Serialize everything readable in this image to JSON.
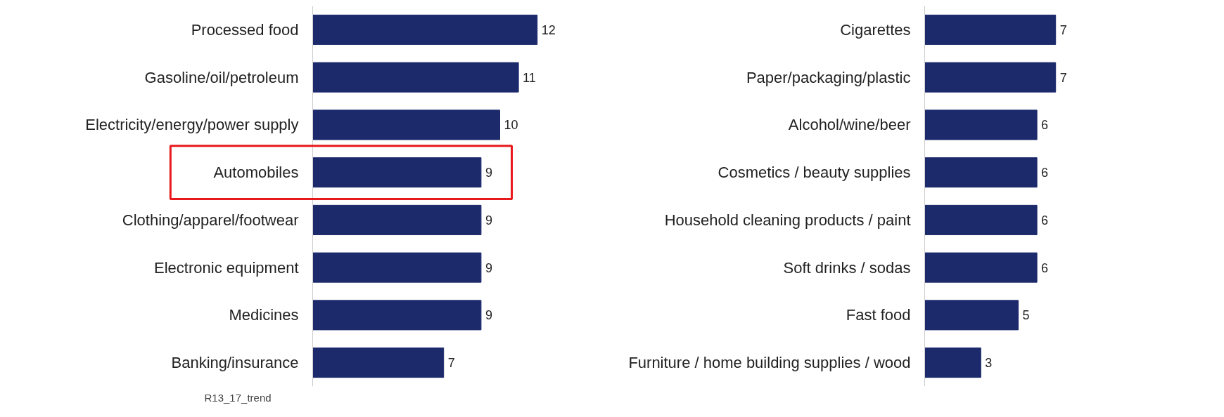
{
  "chart_data": [
    {
      "type": "bar",
      "orientation": "horizontal",
      "categories": [
        "Processed food",
        "Gasoline/oil/petroleum",
        "Electricity/energy/power supply",
        "Automobiles",
        "Clothing/apparel/footwear",
        "Electronic equipment",
        "Medicines",
        "Banking/insurance"
      ],
      "values": [
        12,
        11,
        10,
        9,
        9,
        9,
        9,
        7
      ],
      "color": "#1c2a6c",
      "data_labels": true,
      "tick_labels": "y",
      "grid": false,
      "annotations": [
        "R13_17_trend"
      ]
    },
    {
      "type": "bar",
      "orientation": "horizontal",
      "categories": [
        "Cigarettes",
        "Paper/packaging/plastic",
        "Alcohol/wine/beer",
        "Cosmetics / beauty supplies",
        "Household cleaning products / paint",
        "Soft drinks / sodas",
        "Fast food",
        "Furniture / home building supplies / wood"
      ],
      "values": [
        7,
        7,
        6,
        6,
        6,
        6,
        5,
        3
      ],
      "color": "#1c2a6c",
      "data_labels": true,
      "tick_labels": "y",
      "grid": false
    }
  ]
}
